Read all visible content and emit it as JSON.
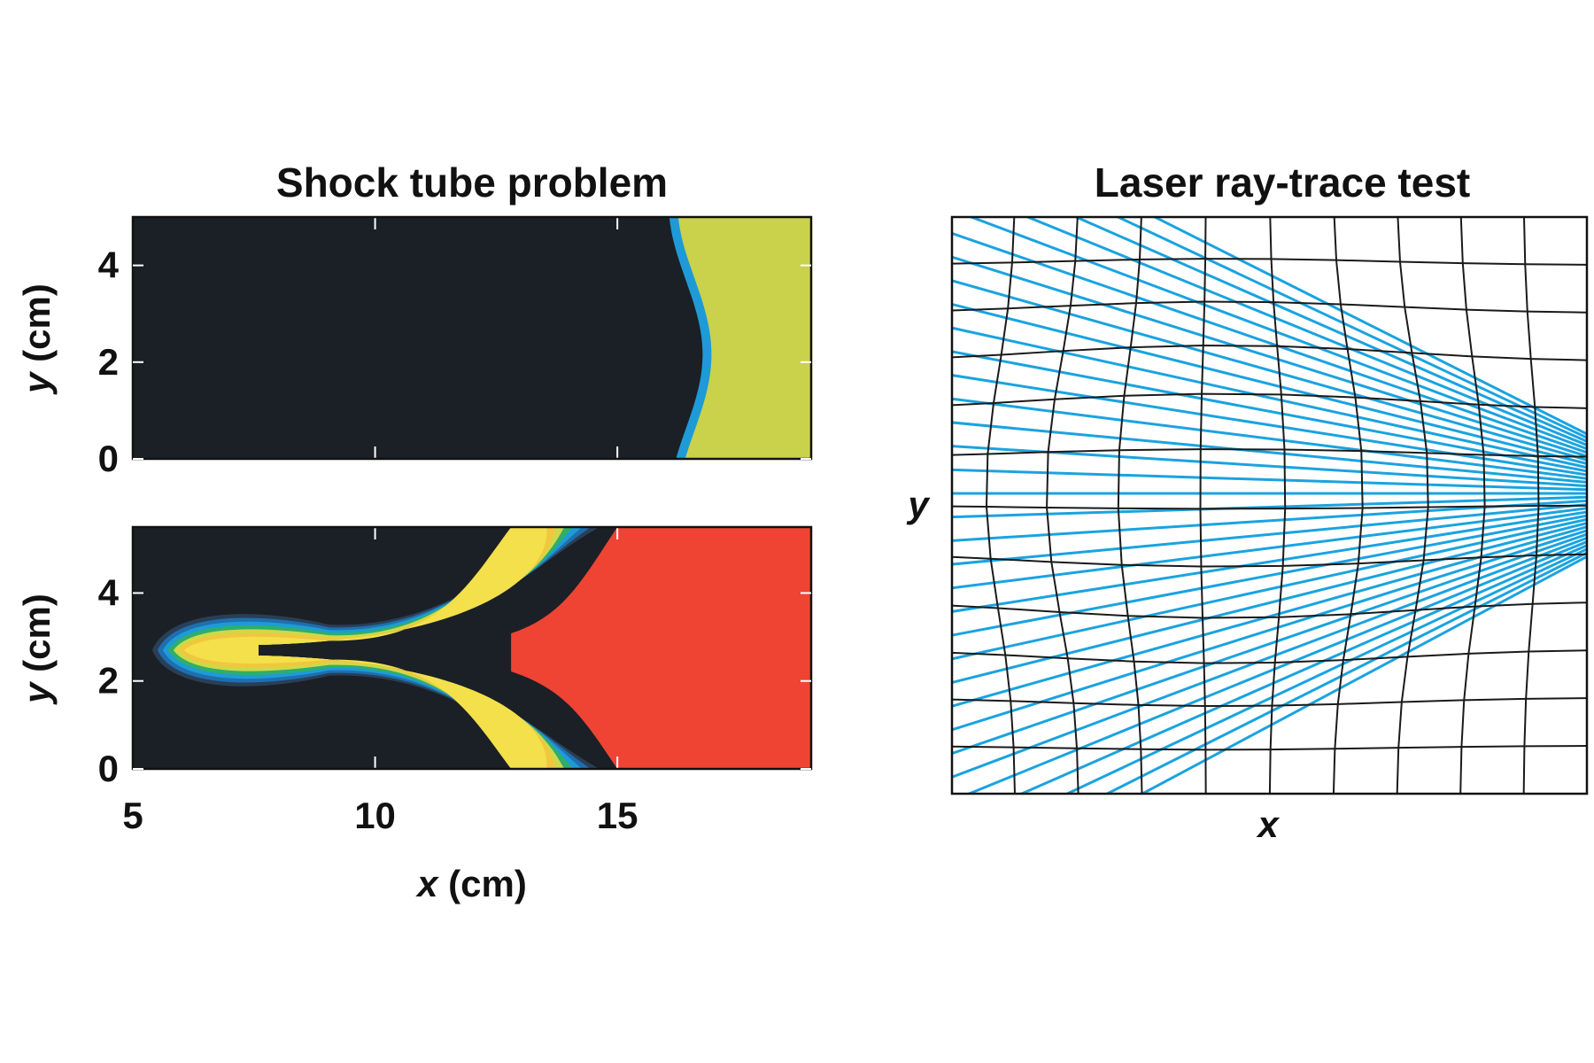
{
  "colors": {
    "background": "#1a2026",
    "shock_yellow": "#c9d24a",
    "shock_blue": "#1e9bd7",
    "hot_red": "#ef4433",
    "ray_blue": "#1aa3e0",
    "mesh": "#1a1a1a"
  },
  "chart_data": [
    {
      "type": "heatmap",
      "title": "Shock tube problem",
      "panels": [
        {
          "name": "",
          "description_values": {
            "front_x_cm": 16.5,
            "front_amplitude_cm": 0.35
          },
          "xlim": [
            5,
            19
          ],
          "ylim": [
            0,
            5
          ],
          "yticks": [
            "0",
            "2",
            "4"
          ],
          "ylabel_var": "y",
          "ylabel_unit": " (cm)"
        },
        {
          "name": "",
          "description_values": {
            "spike_tip_x_cm": 5.4,
            "spike_center_y_cm": 2.7,
            "bubble_x_cm": 15.0
          },
          "xlim": [
            5,
            19
          ],
          "ylim": [
            0,
            5.5
          ],
          "yticks": [
            "0",
            "2",
            "4"
          ],
          "ylabel_var": "y",
          "ylabel_unit": " (cm)"
        }
      ],
      "xticks": [
        "5",
        "10",
        "15"
      ],
      "xlabel_var": "x",
      "xlabel_unit": " (cm)"
    },
    {
      "type": "line",
      "title": "Laser ray-trace test",
      "xlabel": "x",
      "ylabel": "y",
      "ray_count": 34,
      "mesh_columns": 10,
      "mesh_rows": 12
    }
  ]
}
